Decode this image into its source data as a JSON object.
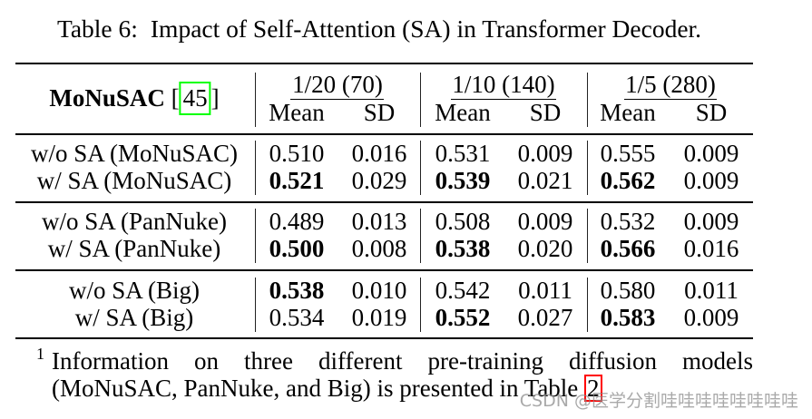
{
  "caption": {
    "label": "Table 6:",
    "title": "Impact of Self-Attention (SA) in Transformer Decoder."
  },
  "table": {
    "header": {
      "dataset": "MoNuSAC",
      "citation": {
        "open": "[",
        "ref": "45",
        "close": "]"
      },
      "splits": [
        {
          "label": "1/20 (70)",
          "columns": [
            "Mean",
            "SD"
          ]
        },
        {
          "label": "1/10 (140)",
          "columns": [
            "Mean",
            "SD"
          ]
        },
        {
          "label": "1/5 (280)",
          "columns": [
            "Mean",
            "SD"
          ]
        }
      ]
    },
    "rows": [
      {
        "label": "w/o SA (MoNuSAC)",
        "values": [
          "0.510",
          "0.016",
          "0.531",
          "0.009",
          "0.555",
          "0.009"
        ],
        "bold": [
          false,
          false,
          false,
          false,
          false,
          false
        ]
      },
      {
        "label": "w/ SA (MoNuSAC)",
        "values": [
          "0.521",
          "0.029",
          "0.539",
          "0.021",
          "0.562",
          "0.009"
        ],
        "bold": [
          true,
          false,
          true,
          false,
          true,
          false
        ]
      },
      {
        "label": "w/o SA (PanNuke)",
        "values": [
          "0.489",
          "0.013",
          "0.508",
          "0.009",
          "0.532",
          "0.009"
        ],
        "bold": [
          false,
          false,
          false,
          false,
          false,
          false
        ]
      },
      {
        "label": "w/ SA (PanNuke)",
        "values": [
          "0.500",
          "0.008",
          "0.538",
          "0.020",
          "0.566",
          "0.016"
        ],
        "bold": [
          true,
          false,
          true,
          false,
          true,
          false
        ]
      },
      {
        "label": "w/o SA (Big)",
        "values": [
          "0.538",
          "0.010",
          "0.542",
          "0.011",
          "0.580",
          "0.011"
        ],
        "bold": [
          true,
          false,
          false,
          false,
          false,
          false
        ]
      },
      {
        "label": "w/ SA (Big)",
        "values": [
          "0.534",
          "0.019",
          "0.552",
          "0.027",
          "0.583",
          "0.009"
        ],
        "bold": [
          false,
          false,
          true,
          false,
          true,
          false
        ]
      }
    ]
  },
  "footnote": {
    "marker": "1",
    "line1": "Information on three different pre-training diffusion models",
    "line2": "(MoNuSAC, PanNuke, and Big) is presented in Table",
    "table_ref": "2"
  },
  "link_colors": {
    "citation_box": "#00ff00",
    "table_ref_box": "#ff0000"
  },
  "watermark": "CSDN @医学分割哇哇哇哇哇哇哇哇"
}
